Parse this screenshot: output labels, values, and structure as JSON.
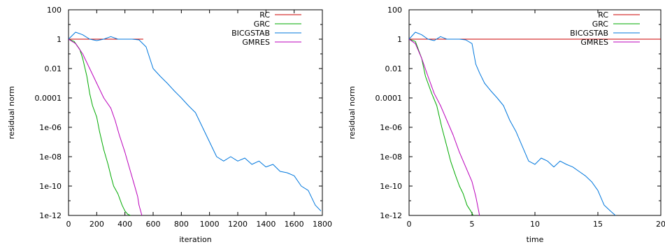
{
  "chart_data": [
    {
      "type": "line",
      "xlabel": "iteration",
      "ylabel": "residual norm",
      "y_scale": "log",
      "xlim": [
        0,
        1800
      ],
      "ylim": [
        1e-12,
        100
      ],
      "xticks": [
        "0",
        "200",
        "400",
        "600",
        "800",
        "1000",
        "1200",
        "1400",
        "1600",
        "1800"
      ],
      "yticks": [
        "1e-12",
        "1e-10",
        "1e-08",
        "1e-06",
        "0.0001",
        "0.01",
        "1",
        "100"
      ],
      "legend_position": "top-right",
      "series": [
        {
          "name": "RC",
          "color": "#cc0000",
          "x": [
            0,
            530
          ],
          "y": [
            1,
            1
          ]
        },
        {
          "name": "GRC",
          "color": "#00aa00",
          "x": [
            0,
            40,
            80,
            100,
            130,
            150,
            170,
            200,
            220,
            250,
            280,
            300,
            320,
            350,
            380,
            400,
            420,
            440
          ],
          "y": [
            1,
            0.7,
            0.2,
            0.05,
            0.003,
            0.0002,
            3e-05,
            5e-06,
            5e-07,
            3e-08,
            3e-09,
            5e-10,
            1e-10,
            3e-11,
            5e-12,
            2e-12,
            1.2e-12,
            1e-12
          ]
        },
        {
          "name": "BICGSTAB",
          "color": "#0077dd",
          "x": [
            0,
            50,
            100,
            150,
            200,
            250,
            300,
            350,
            400,
            450,
            500,
            550,
            600,
            650,
            700,
            750,
            800,
            850,
            900,
            950,
            1000,
            1050,
            1100,
            1150,
            1200,
            1250,
            1300,
            1350,
            1400,
            1450,
            1500,
            1550,
            1600,
            1650,
            1700,
            1750,
            1790
          ],
          "y": [
            1,
            3,
            2,
            1,
            0.8,
            1,
            1.5,
            1,
            1,
            1,
            0.9,
            0.3,
            0.01,
            0.003,
            0.001,
            0.0003,
            0.0001,
            3e-05,
            1e-05,
            1e-06,
            1e-07,
            1e-08,
            5e-09,
            1e-08,
            5e-09,
            8e-09,
            3e-09,
            5e-09,
            2e-09,
            3e-09,
            1e-09,
            8e-10,
            5e-10,
            1e-10,
            5e-11,
            5e-12,
            2e-12
          ]
        },
        {
          "name": "GMRES",
          "color": "#bb00bb",
          "x": [
            0,
            50,
            100,
            150,
            200,
            250,
            300,
            330,
            360,
            400,
            430,
            460,
            490,
            500,
            520
          ],
          "y": [
            1,
            0.5,
            0.1,
            0.01,
            0.001,
            0.0001,
            2e-05,
            3e-06,
            3e-07,
            2e-08,
            2e-09,
            2e-10,
            2e-11,
            5e-12,
            1e-12
          ]
        }
      ]
    },
    {
      "type": "line",
      "xlabel": "time",
      "ylabel": "residual norm",
      "y_scale": "log",
      "xlim": [
        0,
        20
      ],
      "ylim": [
        1e-12,
        100
      ],
      "xticks": [
        "0",
        "5",
        "10",
        "15",
        "20"
      ],
      "yticks": [
        "1e-12",
        "1e-10",
        "1e-08",
        "1e-06",
        "0.0001",
        "0.01",
        "1",
        "100"
      ],
      "legend_position": "top-right",
      "series": [
        {
          "name": "RC",
          "color": "#cc0000",
          "x": [
            0,
            20
          ],
          "y": [
            1,
            1
          ]
        },
        {
          "name": "GRC",
          "color": "#00aa00",
          "x": [
            0,
            0.5,
            1,
            1.3,
            1.8,
            2.2,
            2.6,
            3,
            3.3,
            3.7,
            4,
            4.3,
            4.6,
            4.9,
            5.1
          ],
          "y": [
            1,
            0.7,
            0.05,
            0.003,
            0.0002,
            3e-05,
            1e-06,
            5e-08,
            5e-09,
            5e-10,
            1e-10,
            3e-11,
            5e-12,
            2e-12,
            1e-12
          ]
        },
        {
          "name": "BICGSTAB",
          "color": "#0077dd",
          "x": [
            0,
            0.5,
            1,
            1.5,
            2,
            2.5,
            3,
            3.5,
            4,
            4.5,
            5,
            5.3,
            5.6,
            6,
            6.5,
            7,
            7.5,
            8,
            8.5,
            9,
            9.5,
            10,
            10.5,
            11,
            11.5,
            12,
            12.5,
            13,
            13.5,
            14,
            14.5,
            15,
            15.5,
            16,
            16.4
          ],
          "y": [
            1,
            3,
            2,
            1,
            0.8,
            1.5,
            1,
            1,
            1,
            0.9,
            0.5,
            0.02,
            0.005,
            0.001,
            0.0003,
            0.0001,
            3e-05,
            3e-06,
            5e-07,
            5e-08,
            5e-09,
            3e-09,
            8e-09,
            5e-09,
            2e-09,
            5e-09,
            3e-09,
            2e-09,
            1e-09,
            5e-10,
            2e-10,
            5e-11,
            5e-12,
            2e-12,
            1e-12
          ]
        },
        {
          "name": "GMRES",
          "color": "#bb00bb",
          "x": [
            0,
            0.5,
            1,
            1.5,
            2,
            2.5,
            3,
            3.5,
            4,
            4.5,
            5,
            5.3,
            5.6
          ],
          "y": [
            1,
            0.5,
            0.05,
            0.003,
            0.0002,
            3e-05,
            3e-06,
            3e-07,
            2e-08,
            2e-09,
            2e-10,
            2e-11,
            1e-12
          ]
        }
      ]
    }
  ]
}
